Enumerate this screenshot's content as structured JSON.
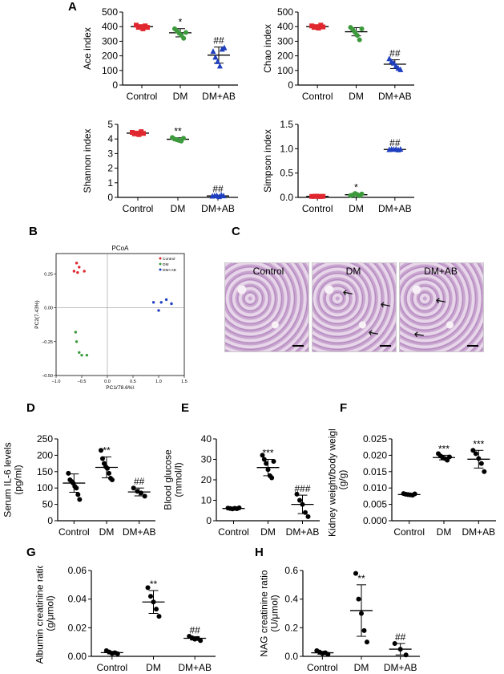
{
  "panel_letters": {
    "a": "A",
    "b": "B",
    "c": "C",
    "d": "D",
    "e": "E",
    "f": "F",
    "g": "G",
    "h": "H"
  },
  "colors": {
    "control": "#e0272f",
    "dm": "#3c9a3c",
    "dmab": "#1f3fbf",
    "axis": "#000000"
  },
  "histology": {
    "labels": [
      "Control",
      "DM",
      "DM+AB"
    ]
  },
  "chart_data": [
    {
      "id": "ace",
      "type": "scatter",
      "ylabel": "Ace index",
      "categories": [
        "Control",
        "DM",
        "DM+AB"
      ],
      "ylim": [
        0,
        500
      ],
      "yticks": [
        0,
        100,
        200,
        300,
        400,
        500
      ],
      "groups": [
        {
          "name": "Control",
          "points": [
            410,
            395,
            400,
            385,
            405,
            395
          ],
          "mean": 400,
          "sd": 10,
          "color": "#e0272f",
          "marker": "square",
          "annot": ""
        },
        {
          "name": "DM",
          "points": [
            385,
            370,
            355,
            340,
            320,
            360
          ],
          "mean": 358,
          "sd": 28,
          "color": "#3c9a3c",
          "marker": "circle",
          "annot": "*"
        },
        {
          "name": "DM+AB",
          "points": [
            230,
            190,
            160,
            130,
            245,
            255
          ],
          "mean": 205,
          "sd": 55,
          "color": "#1f3fbf",
          "marker": "triangle",
          "annot": "##"
        }
      ]
    },
    {
      "id": "chao",
      "type": "scatter",
      "ylabel": "Chao index",
      "categories": [
        "Control",
        "DM",
        "DM+AB"
      ],
      "ylim": [
        0,
        500
      ],
      "yticks": [
        0,
        100,
        200,
        300,
        400,
        500
      ],
      "groups": [
        {
          "name": "Control",
          "points": [
            405,
            395,
            400,
            390,
            410,
            398
          ],
          "mean": 400,
          "sd": 8,
          "color": "#e0272f",
          "marker": "square",
          "annot": ""
        },
        {
          "name": "DM",
          "points": [
            395,
            380,
            360,
            340,
            310,
            385
          ],
          "mean": 365,
          "sd": 28,
          "color": "#3c9a3c",
          "marker": "circle",
          "annot": ""
        },
        {
          "name": "DM+AB",
          "points": [
            180,
            160,
            150,
            130,
            115,
            105
          ],
          "mean": 143,
          "sd": 30,
          "color": "#1f3fbf",
          "marker": "triangle",
          "annot": "##"
        }
      ]
    },
    {
      "id": "shannon",
      "type": "scatter",
      "ylabel": "Shannon index",
      "categories": [
        "Control",
        "DM",
        "DM+AB"
      ],
      "ylim": [
        0,
        5
      ],
      "yticks": [
        0,
        1,
        2,
        3,
        4,
        5
      ],
      "groups": [
        {
          "name": "Control",
          "points": [
            4.45,
            4.35,
            4.4,
            4.3,
            4.5,
            4.38
          ],
          "mean": 4.4,
          "sd": 0.08,
          "color": "#e0272f",
          "marker": "square",
          "annot": ""
        },
        {
          "name": "DM",
          "points": [
            4.1,
            4.0,
            3.95,
            3.9,
            3.85,
            4.05
          ],
          "mean": 3.98,
          "sd": 0.1,
          "color": "#3c9a3c",
          "marker": "circle",
          "annot": "**"
        },
        {
          "name": "DM+AB",
          "points": [
            0.08,
            0.1,
            0.12,
            0.05,
            0.15,
            0.1
          ],
          "mean": 0.1,
          "sd": 0.04,
          "color": "#1f3fbf",
          "marker": "triangle",
          "annot": "##"
        }
      ]
    },
    {
      "id": "simpson",
      "type": "scatter",
      "ylabel": "Simpson index",
      "categories": [
        "Control",
        "DM",
        "DM+AB"
      ],
      "ylim": [
        0,
        1.5
      ],
      "yticks": [
        0.0,
        0.5,
        1.0,
        1.5
      ],
      "ytick_labels": [
        "0.0",
        "0.5",
        "1.0",
        "1.5"
      ],
      "groups": [
        {
          "name": "Control",
          "points": [
            0.02,
            0.02,
            0.025,
            0.02,
            0.018,
            0.022
          ],
          "mean": 0.02,
          "sd": 0.004,
          "color": "#e0272f",
          "marker": "square",
          "annot": ""
        },
        {
          "name": "DM",
          "points": [
            0.04,
            0.05,
            0.08,
            0.06,
            0.03,
            0.07
          ],
          "mean": 0.055,
          "sd": 0.02,
          "color": "#3c9a3c",
          "marker": "circle",
          "annot": "*"
        },
        {
          "name": "DM+AB",
          "points": [
            0.98,
            0.99,
            0.985,
            0.99,
            0.975,
            0.99
          ],
          "mean": 0.985,
          "sd": 0.008,
          "color": "#1f3fbf",
          "marker": "triangle",
          "annot": "##"
        }
      ]
    },
    {
      "id": "pcoa",
      "type": "scatter",
      "title": "PCoA",
      "xlabel": "PC1(78.6%)",
      "ylabel": "PC2(7.43%)",
      "xlim": [
        -1.0,
        1.5
      ],
      "ylim": [
        -0.5,
        0.4
      ],
      "xticks": [
        -1.0,
        -0.5,
        0.0,
        0.5,
        1.0,
        1.5
      ],
      "xtick_labels": [
        "−1.0",
        "−0.5",
        "0.0",
        "0.5",
        "1.0",
        "1.5"
      ],
      "yticks": [
        -0.5,
        -0.25,
        0.0,
        0.25
      ],
      "ytick_labels": [
        "−0.50",
        "−0.25",
        "0.00",
        "0.25"
      ],
      "legend": [
        "Control",
        "DM",
        "DM+AB"
      ],
      "legend_position": "top-right",
      "series": [
        {
          "name": "Control",
          "color": "#e0272f",
          "points": [
            [
              -0.6,
              0.33
            ],
            [
              -0.55,
              0.3
            ],
            [
              -0.65,
              0.27
            ],
            [
              -0.45,
              0.27
            ],
            [
              -0.58,
              0.26
            ]
          ]
        },
        {
          "name": "DM",
          "color": "#3c9a3c",
          "points": [
            [
              -0.62,
              -0.18
            ],
            [
              -0.6,
              -0.25
            ],
            [
              -0.55,
              -0.33
            ],
            [
              -0.5,
              -0.35
            ],
            [
              -0.4,
              -0.35
            ]
          ]
        },
        {
          "name": "DM+AB",
          "color": "#1f3fbf",
          "points": [
            [
              0.9,
              0.04
            ],
            [
              1.05,
              0.04
            ],
            [
              1.15,
              0.06
            ],
            [
              1.25,
              0.03
            ],
            [
              1.0,
              -0.02
            ]
          ]
        }
      ]
    },
    {
      "id": "il6",
      "type": "scatter",
      "ylabel": "Serum IL-6 levels\n(pg/ml)",
      "categories": [
        "Control",
        "DM",
        "DM+AB"
      ],
      "ylim": [
        0,
        250
      ],
      "yticks": [
        0,
        50,
        100,
        150,
        200,
        250
      ],
      "groups": [
        {
          "name": "Control",
          "points": [
            145,
            125,
            120,
            115,
            105,
            100,
            80,
            65
          ],
          "mean": 115,
          "sd": 28,
          "color": "#000",
          "marker": "circle",
          "annot": ""
        },
        {
          "name": "DM",
          "points": [
            215,
            190,
            175,
            165,
            160,
            145,
            130,
            125
          ],
          "mean": 163,
          "sd": 32,
          "color": "#000",
          "marker": "circle",
          "annot": "**"
        },
        {
          "name": "DM+AB",
          "points": [
            100,
            90,
            85,
            75
          ],
          "mean": 88,
          "sd": 12,
          "color": "#000",
          "marker": "circle",
          "annot": "##"
        }
      ]
    },
    {
      "id": "glucose",
      "type": "scatter",
      "ylabel": "Blood glucose\n(mmol/l)",
      "categories": [
        "Control",
        "DM",
        "DM+AB"
      ],
      "ylim": [
        0,
        40
      ],
      "yticks": [
        0,
        10,
        20,
        30,
        40
      ],
      "groups": [
        {
          "name": "Control",
          "points": [
            6.2,
            6.0,
            5.8,
            6.1,
            5.9,
            6.3
          ],
          "mean": 6.0,
          "sd": 0.2,
          "color": "#000",
          "marker": "circle",
          "annot": ""
        },
        {
          "name": "DM",
          "points": [
            32,
            30,
            28,
            25,
            22,
            21,
            29
          ],
          "mean": 26,
          "sd": 4,
          "color": "#000",
          "marker": "circle",
          "annot": "***"
        },
        {
          "name": "DM+AB",
          "points": [
            13,
            10,
            8,
            4,
            2
          ],
          "mean": 8,
          "sd": 4.5,
          "color": "#000",
          "marker": "circle",
          "annot": "###"
        }
      ]
    },
    {
      "id": "kidney",
      "type": "scatter",
      "ylabel": "Kidney weight/body weight\n(g/g)",
      "categories": [
        "Control",
        "DM",
        "DM+AB"
      ],
      "ylim": [
        0,
        0.025
      ],
      "yticks": [
        0,
        0.005,
        0.01,
        0.015,
        0.02,
        0.025
      ],
      "ytick_labels": [
        "0.000",
        "0.005",
        "0.010",
        "0.015",
        "0.020",
        "0.025"
      ],
      "groups": [
        {
          "name": "Control",
          "points": [
            0.0083,
            0.0081,
            0.008,
            0.0079,
            0.0078,
            0.0082
          ],
          "mean": 0.008,
          "sd": 0.0003,
          "color": "#000",
          "marker": "circle",
          "annot": ""
        },
        {
          "name": "DM",
          "points": [
            0.0205,
            0.0198,
            0.0192,
            0.019,
            0.0185,
            0.0195
          ],
          "mean": 0.0193,
          "sd": 0.0007,
          "color": "#000",
          "marker": "circle",
          "annot": "***"
        },
        {
          "name": "DM+AB",
          "points": [
            0.0215,
            0.0205,
            0.019,
            0.0175,
            0.015
          ],
          "mean": 0.0188,
          "sd": 0.0027,
          "color": "#000",
          "marker": "circle",
          "annot": "***"
        }
      ]
    },
    {
      "id": "albumin",
      "type": "scatter",
      "ylabel": "Albumin creatinine ratio\n(g/μmol)",
      "categories": [
        "Control",
        "DM",
        "DM+AB"
      ],
      "ylim": [
        0,
        0.06
      ],
      "yticks": [
        0,
        0.02,
        0.04,
        0.06
      ],
      "ytick_labels": [
        "0.00",
        "0.02",
        "0.04",
        "0.06"
      ],
      "groups": [
        {
          "name": "Control",
          "points": [
            0.004,
            0.003,
            0.002,
            0.0025,
            0.0018
          ],
          "mean": 0.0026,
          "sd": 0.0009,
          "color": "#000",
          "marker": "circle",
          "annot": ""
        },
        {
          "name": "DM",
          "points": [
            0.048,
            0.042,
            0.038,
            0.033,
            0.028
          ],
          "mean": 0.038,
          "sd": 0.008,
          "color": "#000",
          "marker": "circle",
          "annot": "**"
        },
        {
          "name": "DM+AB",
          "points": [
            0.014,
            0.013,
            0.012,
            0.0125,
            0.011
          ],
          "mean": 0.0126,
          "sd": 0.0012,
          "color": "#000",
          "marker": "circle",
          "annot": "##"
        }
      ]
    },
    {
      "id": "nag",
      "type": "scatter",
      "ylabel": "NAG creatinine ratio\n(U/μmol)",
      "categories": [
        "Control",
        "DM",
        "DM+AB"
      ],
      "ylim": [
        0,
        0.6
      ],
      "yticks": [
        0,
        0.2,
        0.4,
        0.6
      ],
      "ytick_labels": [
        "0.0",
        "0.2",
        "0.4",
        "0.6"
      ],
      "groups": [
        {
          "name": "Control",
          "points": [
            0.04,
            0.03,
            0.02,
            0.025,
            0.015
          ],
          "mean": 0.025,
          "sd": 0.01,
          "color": "#000",
          "marker": "circle",
          "annot": ""
        },
        {
          "name": "DM",
          "points": [
            0.58,
            0.4,
            0.3,
            0.18,
            0.1
          ],
          "mean": 0.32,
          "sd": 0.18,
          "color": "#000",
          "marker": "circle",
          "annot": "**"
        },
        {
          "name": "DM+AB",
          "points": [
            0.09,
            0.05,
            0.01
          ],
          "mean": 0.05,
          "sd": 0.04,
          "color": "#000",
          "marker": "circle",
          "annot": "##"
        }
      ]
    }
  ]
}
